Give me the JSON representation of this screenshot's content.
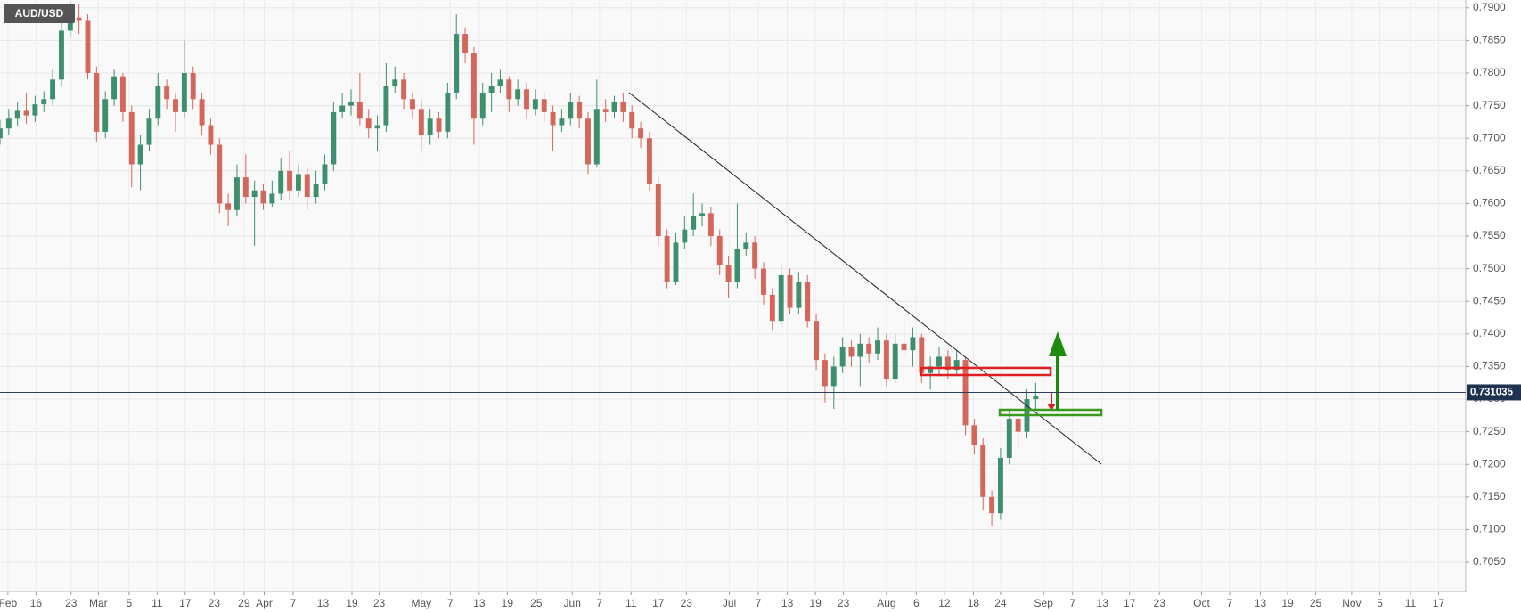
{
  "chart_data": {
    "type": "candlestick",
    "title": "AUD/USD",
    "up_color": "#3d8f6e",
    "down_color": "#d4675c",
    "grid": true,
    "last_price": 0.731035,
    "xlim": [
      0,
      167
    ],
    "ylim": [
      0.7005,
      0.7912
    ],
    "yticks": [
      {
        "value": 0.705,
        "label": "0.7050"
      },
      {
        "value": 0.71,
        "label": "0.7100"
      },
      {
        "value": 0.715,
        "label": "0.7150"
      },
      {
        "value": 0.72,
        "label": "0.7200"
      },
      {
        "value": 0.725,
        "label": "0.7250"
      },
      {
        "value": 0.73,
        "label": "0.7300"
      },
      {
        "value": 0.735,
        "label": "0.7350"
      },
      {
        "value": 0.74,
        "label": "0.7400"
      },
      {
        "value": 0.745,
        "label": "0.7450"
      },
      {
        "value": 0.75,
        "label": "0.7500"
      },
      {
        "value": 0.755,
        "label": "0.7550"
      },
      {
        "value": 0.76,
        "label": "0.7600"
      },
      {
        "value": 0.765,
        "label": "0.7650"
      },
      {
        "value": 0.77,
        "label": "0.7700"
      },
      {
        "value": 0.775,
        "label": "0.7750"
      },
      {
        "value": 0.78,
        "label": "0.7800"
      },
      {
        "value": 0.785,
        "label": "0.7850"
      },
      {
        "value": 0.79,
        "label": "0.7900"
      }
    ],
    "xticks": [
      {
        "value": 0.9,
        "label": "Feb"
      },
      {
        "value": 4.1,
        "label": "16"
      },
      {
        "value": 8.1,
        "label": "23"
      },
      {
        "value": 11.2,
        "label": "Mar"
      },
      {
        "value": 14.7,
        "label": "5"
      },
      {
        "value": 17.9,
        "label": "11"
      },
      {
        "value": 21.1,
        "label": "17"
      },
      {
        "value": 24.4,
        "label": "23"
      },
      {
        "value": 27.8,
        "label": "29"
      },
      {
        "value": 30.1,
        "label": "Apr"
      },
      {
        "value": 33.4,
        "label": "7"
      },
      {
        "value": 36.8,
        "label": "13"
      },
      {
        "value": 40.1,
        "label": "19"
      },
      {
        "value": 43.2,
        "label": "23"
      },
      {
        "value": 48,
        "label": "May"
      },
      {
        "value": 51.3,
        "label": "7"
      },
      {
        "value": 54.6,
        "label": "13"
      },
      {
        "value": 57.8,
        "label": "19"
      },
      {
        "value": 61.1,
        "label": "25"
      },
      {
        "value": 65.2,
        "label": "Jun"
      },
      {
        "value": 68.3,
        "label": "7"
      },
      {
        "value": 71.9,
        "label": "11"
      },
      {
        "value": 75,
        "label": "17"
      },
      {
        "value": 78.2,
        "label": "23"
      },
      {
        "value": 83.1,
        "label": "Jul"
      },
      {
        "value": 86.4,
        "label": "7"
      },
      {
        "value": 89.7,
        "label": "13"
      },
      {
        "value": 92.9,
        "label": "19"
      },
      {
        "value": 96.1,
        "label": "23"
      },
      {
        "value": 101,
        "label": "Aug"
      },
      {
        "value": 104.4,
        "label": "6"
      },
      {
        "value": 107.6,
        "label": "12"
      },
      {
        "value": 110.9,
        "label": "18"
      },
      {
        "value": 114,
        "label": "24"
      },
      {
        "value": 118.9,
        "label": "Sep"
      },
      {
        "value": 122.2,
        "label": "7"
      },
      {
        "value": 125.6,
        "label": "13"
      },
      {
        "value": 128.7,
        "label": "17"
      },
      {
        "value": 132.1,
        "label": "23"
      },
      {
        "value": 136.9,
        "label": "Oct"
      },
      {
        "value": 140.1,
        "label": "7"
      },
      {
        "value": 143.6,
        "label": "13"
      },
      {
        "value": 146.7,
        "label": "19"
      },
      {
        "value": 149.9,
        "label": "25"
      },
      {
        "value": 154,
        "label": "Nov"
      },
      {
        "value": 157.2,
        "label": "5"
      },
      {
        "value": 160.7,
        "label": "11"
      },
      {
        "value": 163.9,
        "label": "17"
      }
    ],
    "x": [
      0,
      1,
      2,
      3,
      4,
      5,
      6,
      7,
      8,
      9,
      10,
      11,
      12,
      13,
      14,
      15,
      16,
      17,
      18,
      19,
      20,
      21,
      22,
      23,
      24,
      25,
      26,
      27,
      28,
      29,
      30,
      31,
      32,
      33,
      34,
      35,
      36,
      37,
      38,
      39,
      40,
      41,
      42,
      43,
      44,
      45,
      46,
      47,
      48,
      49,
      50,
      51,
      52,
      53,
      54,
      55,
      56,
      57,
      58,
      59,
      60,
      61,
      62,
      63,
      64,
      65,
      66,
      67,
      68,
      69,
      70,
      71,
      72,
      73,
      74,
      75,
      76,
      77,
      78,
      79,
      80,
      81,
      82,
      83,
      84,
      85,
      86,
      87,
      88,
      89,
      90,
      91,
      92,
      93,
      94,
      95,
      96,
      97,
      98,
      99,
      100,
      101,
      102,
      103,
      104,
      105,
      106,
      107,
      108,
      109,
      110,
      111,
      112,
      113,
      114,
      115,
      116,
      117,
      118
    ],
    "open": [
      0.77,
      0.7715,
      0.773,
      0.7742,
      0.7735,
      0.7752,
      0.776,
      0.779,
      0.7865,
      0.7885,
      0.788,
      0.78,
      0.771,
      0.776,
      0.7795,
      0.774,
      0.766,
      0.769,
      0.773,
      0.778,
      0.776,
      0.774,
      0.78,
      0.776,
      0.772,
      0.769,
      0.76,
      0.759,
      0.764,
      0.761,
      0.762,
      0.76,
      0.7615,
      0.765,
      0.762,
      0.7645,
      0.761,
      0.763,
      0.766,
      0.774,
      0.775,
      0.7755,
      0.773,
      0.7715,
      0.772,
      0.778,
      0.779,
      0.776,
      0.7745,
      0.7705,
      0.773,
      0.771,
      0.777,
      0.786,
      0.783,
      0.773,
      0.777,
      0.778,
      0.779,
      0.776,
      0.7775,
      0.7745,
      0.776,
      0.774,
      0.772,
      0.773,
      0.7755,
      0.773,
      0.766,
      0.7745,
      0.774,
      0.7755,
      0.774,
      0.7715,
      0.77,
      0.763,
      0.755,
      0.748,
      0.754,
      0.756,
      0.758,
      0.7585,
      0.755,
      0.7505,
      0.748,
      0.753,
      0.754,
      0.75,
      0.746,
      0.742,
      0.749,
      0.744,
      0.748,
      0.742,
      0.736,
      0.732,
      0.735,
      0.738,
      0.7365,
      0.7385,
      0.737,
      0.739,
      0.733,
      0.7385,
      0.7375,
      0.7395,
      0.734,
      0.735,
      0.7365,
      0.7345,
      0.736,
      0.726,
      0.723,
      0.715,
      0.7125,
      0.721,
      0.727,
      0.725,
      0.73
    ],
    "high": [
      0.7728,
      0.7745,
      0.7755,
      0.777,
      0.7765,
      0.7772,
      0.7805,
      0.788,
      0.791,
      0.7905,
      0.789,
      0.781,
      0.7772,
      0.7805,
      0.78,
      0.775,
      0.7705,
      0.7745,
      0.78,
      0.779,
      0.777,
      0.785,
      0.781,
      0.777,
      0.773,
      0.77,
      0.7615,
      0.766,
      0.7675,
      0.7635,
      0.763,
      0.7635,
      0.767,
      0.768,
      0.766,
      0.7655,
      0.765,
      0.7675,
      0.7755,
      0.777,
      0.7775,
      0.78,
      0.7745,
      0.7735,
      0.7815,
      0.781,
      0.78,
      0.777,
      0.776,
      0.7745,
      0.774,
      0.7785,
      0.789,
      0.787,
      0.784,
      0.7785,
      0.78,
      0.7805,
      0.7795,
      0.779,
      0.7785,
      0.7775,
      0.777,
      0.775,
      0.7745,
      0.777,
      0.7765,
      0.774,
      0.779,
      0.776,
      0.7765,
      0.777,
      0.775,
      0.7725,
      0.771,
      0.764,
      0.756,
      0.7555,
      0.758,
      0.7615,
      0.76,
      0.7595,
      0.756,
      0.752,
      0.76,
      0.7555,
      0.755,
      0.751,
      0.747,
      0.7505,
      0.75,
      0.7495,
      0.749,
      0.743,
      0.737,
      0.7365,
      0.7395,
      0.739,
      0.74,
      0.7395,
      0.741,
      0.74,
      0.74,
      0.742,
      0.741,
      0.74,
      0.7365,
      0.738,
      0.7375,
      0.7375,
      0.7365,
      0.727,
      0.724,
      0.716,
      0.7225,
      0.7285,
      0.728,
      0.7315,
      0.7325
    ],
    "low": [
      0.769,
      0.7705,
      0.7718,
      0.7722,
      0.7725,
      0.774,
      0.775,
      0.778,
      0.7855,
      0.786,
      0.779,
      0.7695,
      0.77,
      0.775,
      0.7725,
      0.7625,
      0.762,
      0.768,
      0.772,
      0.7745,
      0.771,
      0.773,
      0.7745,
      0.7705,
      0.7675,
      0.7585,
      0.7565,
      0.758,
      0.76,
      0.7535,
      0.759,
      0.7595,
      0.7605,
      0.7605,
      0.761,
      0.759,
      0.76,
      0.762,
      0.765,
      0.773,
      0.7735,
      0.772,
      0.77,
      0.768,
      0.771,
      0.777,
      0.7745,
      0.773,
      0.768,
      0.769,
      0.77,
      0.77,
      0.776,
      0.7815,
      0.769,
      0.772,
      0.774,
      0.777,
      0.774,
      0.775,
      0.773,
      0.7735,
      0.7725,
      0.768,
      0.771,
      0.772,
      0.7715,
      0.7645,
      0.7655,
      0.7725,
      0.773,
      0.7725,
      0.77,
      0.7685,
      0.762,
      0.7535,
      0.747,
      0.7475,
      0.753,
      0.755,
      0.7565,
      0.7535,
      0.749,
      0.7455,
      0.747,
      0.752,
      0.7485,
      0.7445,
      0.7405,
      0.741,
      0.743,
      0.743,
      0.741,
      0.7345,
      0.7295,
      0.7285,
      0.734,
      0.735,
      0.732,
      0.7355,
      0.736,
      0.732,
      0.7325,
      0.7365,
      0.735,
      0.7325,
      0.7315,
      0.7335,
      0.733,
      0.7335,
      0.7245,
      0.7215,
      0.713,
      0.7105,
      0.7115,
      0.72,
      0.7225,
      0.724,
      0.7285
    ],
    "close": [
      0.7715,
      0.773,
      0.7742,
      0.7735,
      0.7752,
      0.776,
      0.779,
      0.7865,
      0.7885,
      0.788,
      0.78,
      0.771,
      0.776,
      0.7795,
      0.774,
      0.766,
      0.769,
      0.773,
      0.778,
      0.776,
      0.774,
      0.78,
      0.776,
      0.772,
      0.769,
      0.76,
      0.759,
      0.764,
      0.761,
      0.762,
      0.76,
      0.7615,
      0.765,
      0.762,
      0.7645,
      0.761,
      0.763,
      0.766,
      0.774,
      0.775,
      0.7755,
      0.773,
      0.7715,
      0.772,
      0.778,
      0.779,
      0.776,
      0.7745,
      0.7705,
      0.773,
      0.771,
      0.777,
      0.786,
      0.783,
      0.773,
      0.777,
      0.778,
      0.779,
      0.776,
      0.7775,
      0.7745,
      0.776,
      0.774,
      0.772,
      0.773,
      0.7755,
      0.773,
      0.766,
      0.7745,
      0.774,
      0.7755,
      0.774,
      0.7715,
      0.77,
      0.763,
      0.755,
      0.748,
      0.754,
      0.756,
      0.758,
      0.7585,
      0.755,
      0.7505,
      0.748,
      0.753,
      0.754,
      0.75,
      0.746,
      0.742,
      0.749,
      0.744,
      0.748,
      0.742,
      0.736,
      0.732,
      0.735,
      0.738,
      0.7365,
      0.7385,
      0.737,
      0.739,
      0.733,
      0.7385,
      0.7375,
      0.7395,
      0.734,
      0.735,
      0.7365,
      0.7345,
      0.736,
      0.726,
      0.723,
      0.715,
      0.7125,
      0.721,
      0.727,
      0.725,
      0.73,
      0.7305
    ]
  }
}
